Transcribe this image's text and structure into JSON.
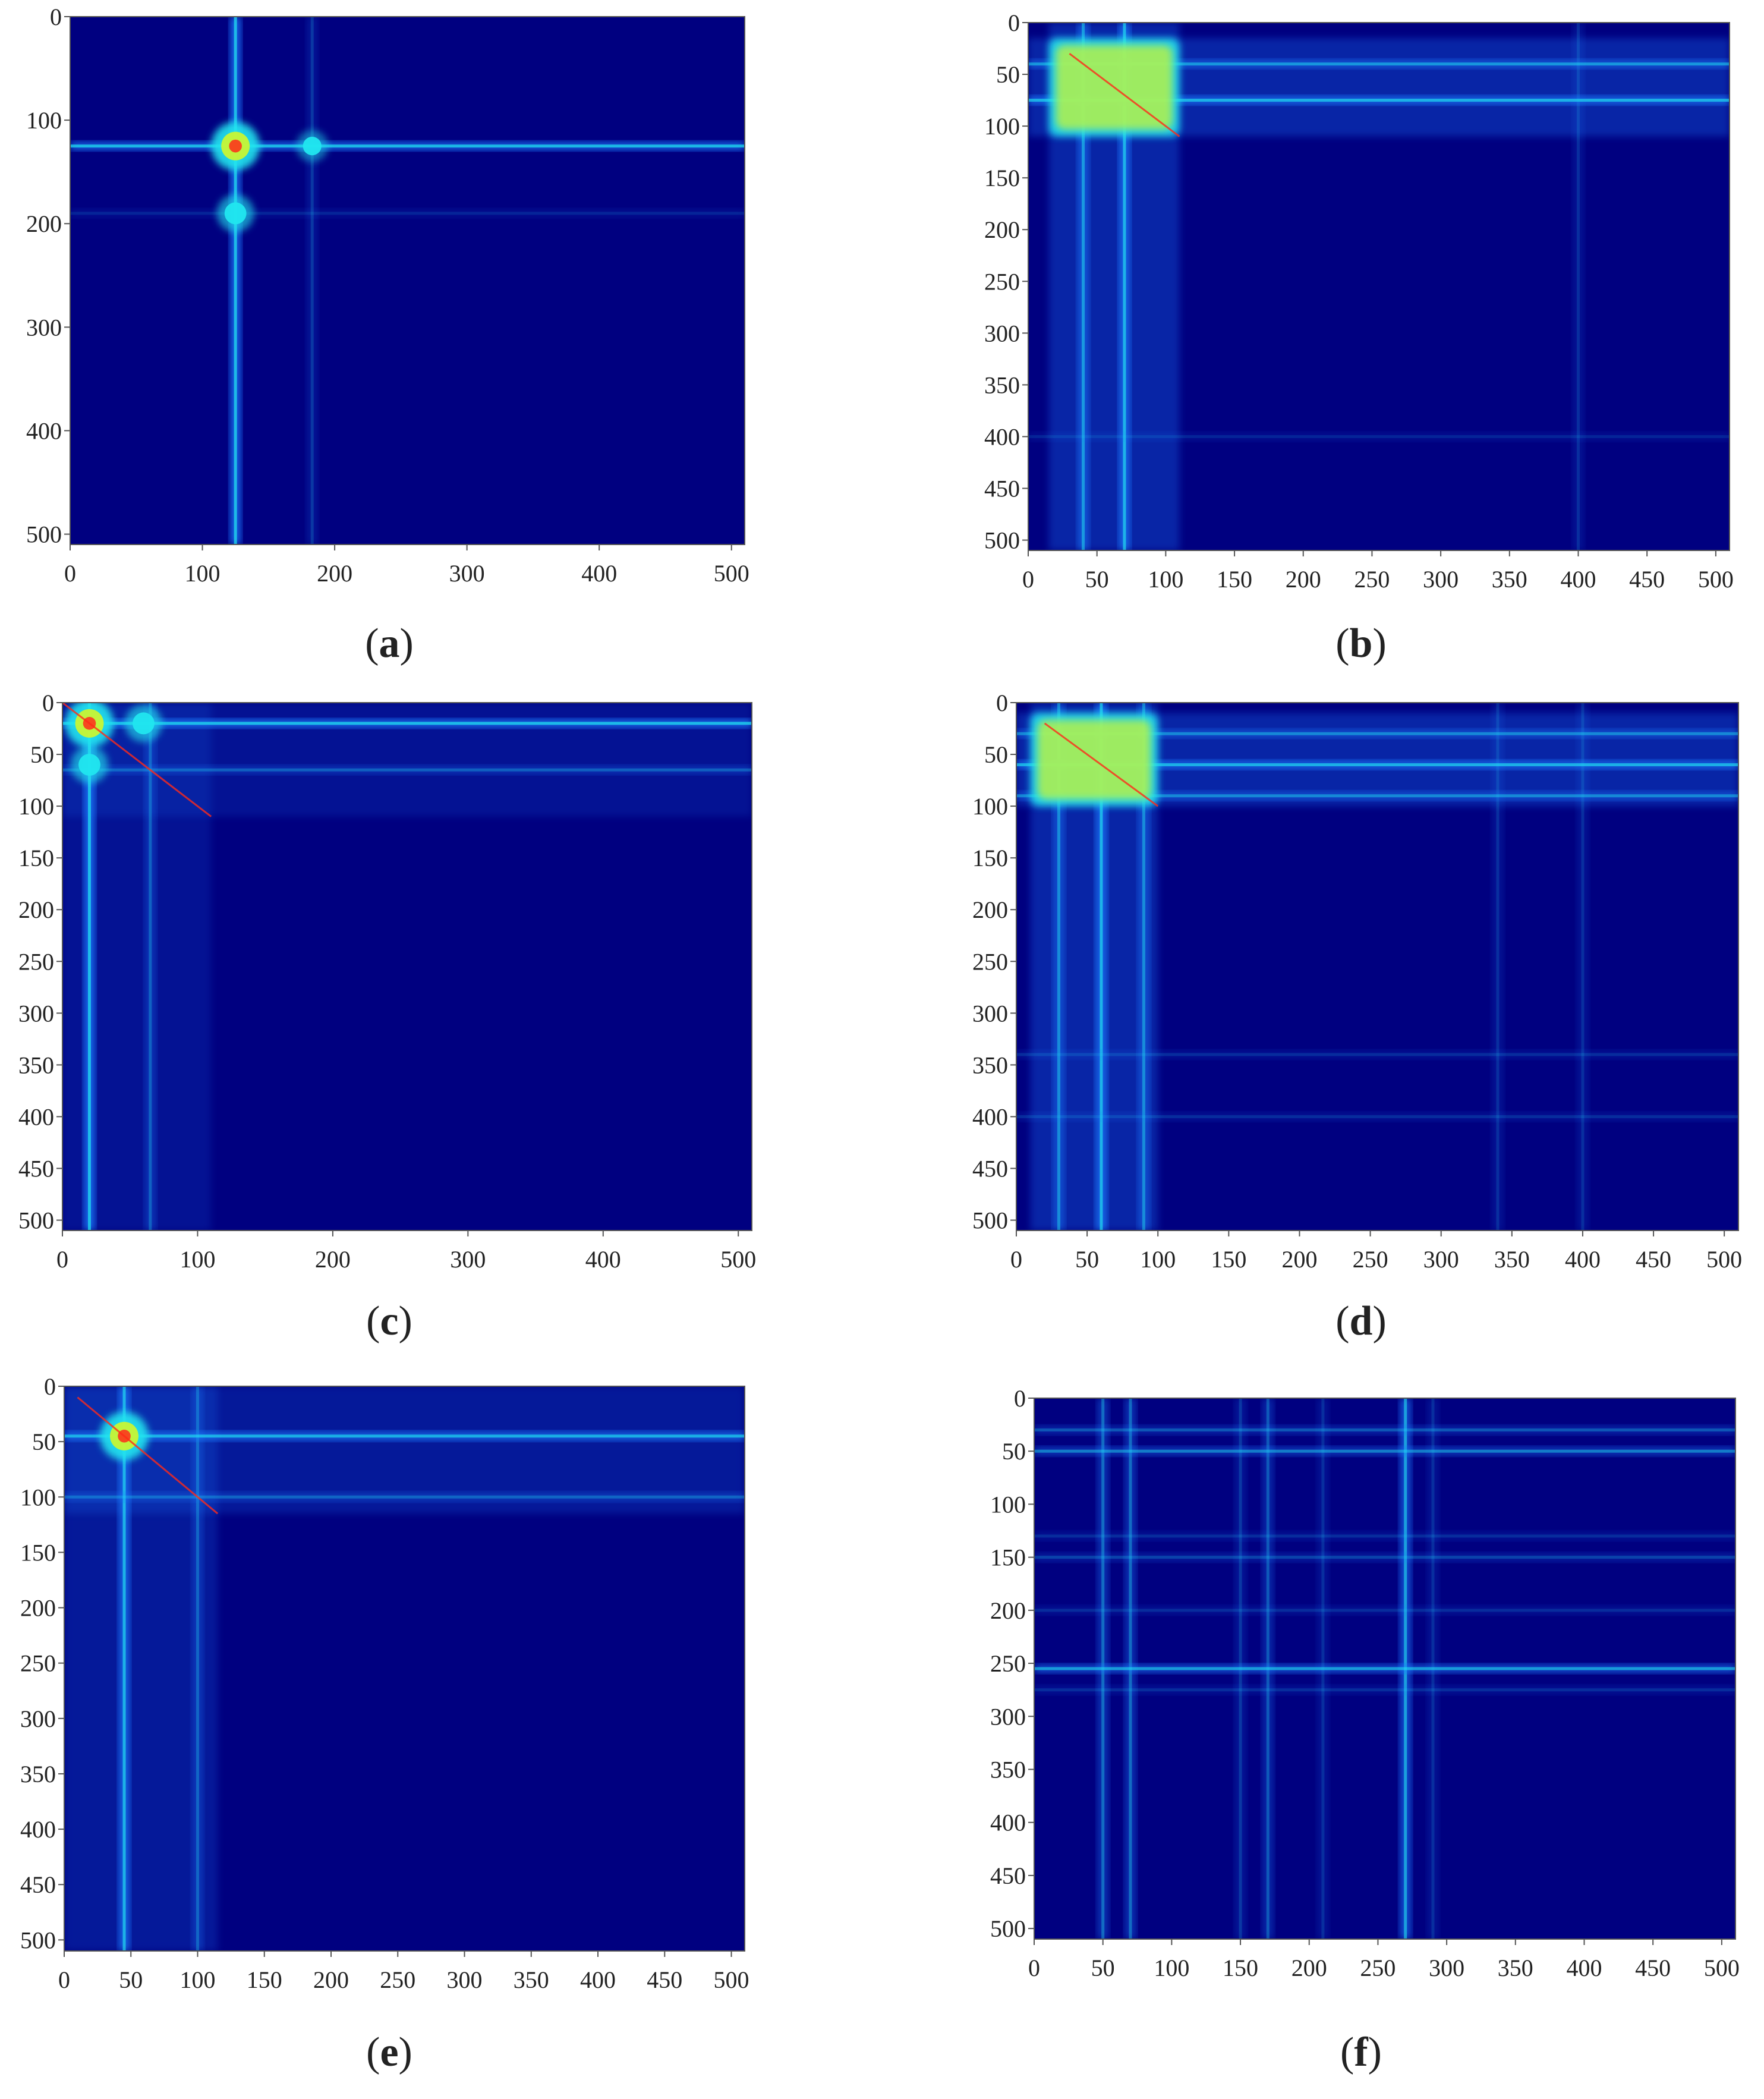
{
  "figure": {
    "panels": [
      {
        "id": "a",
        "label": "a"
      },
      {
        "id": "b",
        "label": "b"
      },
      {
        "id": "c",
        "label": "c"
      },
      {
        "id": "d",
        "label": "d"
      },
      {
        "id": "e",
        "label": "e"
      },
      {
        "id": "f",
        "label": "f"
      }
    ]
  },
  "colors": {
    "background": "#000080",
    "ridge": "#1e7cff",
    "bright": "#21e6ef",
    "hot": "#c8f534",
    "diagonal": "#ff2a1a",
    "tick_text": "#222222"
  },
  "chart_data": [
    {
      "type": "heatmap",
      "panel": "a",
      "colormap": "jet",
      "x_range": [
        0,
        510
      ],
      "y_range": [
        0,
        510
      ],
      "y_inverted": true,
      "xticks": [
        0,
        100,
        200,
        300,
        400,
        500
      ],
      "yticks": [
        0,
        100,
        200,
        300,
        400,
        500
      ],
      "features": {
        "vertical_bands": [
          {
            "at": 125,
            "intensity": 0.5
          },
          {
            "at": 183,
            "intensity": 0.12
          }
        ],
        "horizontal_bands": [
          {
            "at": 125,
            "intensity": 0.5
          },
          {
            "at": 190,
            "intensity": 0.08
          }
        ],
        "hotspots": [
          {
            "x": 125,
            "y": 125,
            "intensity": 1.0
          },
          {
            "x": 125,
            "y": 190,
            "intensity": 0.6
          },
          {
            "x": 183,
            "y": 125,
            "intensity": 0.4
          }
        ]
      }
    },
    {
      "type": "heatmap",
      "panel": "b",
      "colormap": "jet",
      "x_range": [
        0,
        510
      ],
      "y_range": [
        0,
        510
      ],
      "y_inverted": true,
      "xticks": [
        0,
        50,
        100,
        150,
        200,
        250,
        300,
        350,
        400,
        450,
        500
      ],
      "yticks": [
        0,
        50,
        100,
        150,
        200,
        250,
        300,
        350,
        400,
        450,
        500
      ],
      "features": {
        "block": {
          "start": 15,
          "end": 110,
          "intensity": 0.3
        },
        "vertical_bands": [
          {
            "at": 40,
            "intensity": 0.35
          },
          {
            "at": 70,
            "intensity": 0.45
          },
          {
            "at": 400,
            "intensity": 0.1
          }
        ],
        "horizontal_bands": [
          {
            "at": 40,
            "intensity": 0.35
          },
          {
            "at": 75,
            "intensity": 0.45
          },
          {
            "at": 400,
            "intensity": 0.08
          }
        ],
        "hot_block": {
          "start": 15,
          "end": 110
        },
        "diagonal": [
          30,
          110
        ]
      }
    },
    {
      "type": "heatmap",
      "panel": "c",
      "colormap": "jet",
      "x_range": [
        0,
        510
      ],
      "y_range": [
        0,
        510
      ],
      "y_inverted": true,
      "xticks": [
        0,
        100,
        200,
        300,
        400,
        500
      ],
      "yticks": [
        0,
        50,
        100,
        150,
        200,
        250,
        300,
        350,
        400,
        450,
        500
      ],
      "features": {
        "block": {
          "start": 0,
          "end": 110,
          "intensity": 0.15
        },
        "vertical_bands": [
          {
            "at": 20,
            "intensity": 0.5
          },
          {
            "at": 65,
            "intensity": 0.2
          }
        ],
        "horizontal_bands": [
          {
            "at": 20,
            "intensity": 0.5
          },
          {
            "at": 65,
            "intensity": 0.2
          }
        ],
        "hotspots": [
          {
            "x": 20,
            "y": 20,
            "intensity": 1.0
          },
          {
            "x": 20,
            "y": 60,
            "intensity": 0.6
          },
          {
            "x": 60,
            "y": 20,
            "intensity": 0.6
          }
        ],
        "diagonal": [
          0,
          110
        ]
      }
    },
    {
      "type": "heatmap",
      "panel": "d",
      "colormap": "jet",
      "x_range": [
        0,
        510
      ],
      "y_range": [
        0,
        510
      ],
      "y_inverted": true,
      "xticks": [
        0,
        50,
        100,
        150,
        200,
        250,
        300,
        350,
        400,
        450,
        500
      ],
      "yticks": [
        0,
        50,
        100,
        150,
        200,
        250,
        300,
        350,
        400,
        450,
        500
      ],
      "features": {
        "block": {
          "start": 10,
          "end": 100,
          "intensity": 0.3
        },
        "vertical_bands": [
          {
            "at": 30,
            "intensity": 0.3
          },
          {
            "at": 60,
            "intensity": 0.45
          },
          {
            "at": 90,
            "intensity": 0.3
          },
          {
            "at": 340,
            "intensity": 0.1
          },
          {
            "at": 400,
            "intensity": 0.1
          }
        ],
        "horizontal_bands": [
          {
            "at": 30,
            "intensity": 0.3
          },
          {
            "at": 60,
            "intensity": 0.45
          },
          {
            "at": 90,
            "intensity": 0.3
          },
          {
            "at": 340,
            "intensity": 0.1
          },
          {
            "at": 400,
            "intensity": 0.1
          }
        ],
        "hot_block": {
          "start": 10,
          "end": 100
        },
        "diagonal": [
          20,
          100
        ]
      }
    },
    {
      "type": "heatmap",
      "panel": "e",
      "colormap": "jet",
      "x_range": [
        0,
        510
      ],
      "y_range": [
        0,
        510
      ],
      "y_inverted": true,
      "xticks": [
        0,
        50,
        100,
        150,
        200,
        250,
        300,
        350,
        400,
        450,
        500
      ],
      "yticks": [
        0,
        50,
        100,
        150,
        200,
        250,
        300,
        350,
        400,
        450,
        500
      ],
      "features": {
        "block": {
          "start": 0,
          "end": 115,
          "intensity": 0.2
        },
        "vertical_bands": [
          {
            "at": 45,
            "intensity": 0.45
          },
          {
            "at": 100,
            "intensity": 0.2
          }
        ],
        "horizontal_bands": [
          {
            "at": 45,
            "intensity": 0.45
          },
          {
            "at": 100,
            "intensity": 0.2
          }
        ],
        "hotspots": [
          {
            "x": 45,
            "y": 45,
            "intensity": 1.0
          }
        ],
        "diagonal": [
          10,
          115
        ]
      }
    },
    {
      "type": "heatmap",
      "panel": "f",
      "colormap": "jet",
      "x_range": [
        0,
        510
      ],
      "y_range": [
        0,
        510
      ],
      "y_inverted": true,
      "xticks": [
        0,
        50,
        100,
        150,
        200,
        250,
        300,
        350,
        400,
        450,
        500
      ],
      "yticks": [
        0,
        50,
        100,
        150,
        200,
        250,
        300,
        350,
        400,
        450,
        500
      ],
      "features": {
        "vertical_bands": [
          {
            "at": 50,
            "intensity": 0.25
          },
          {
            "at": 70,
            "intensity": 0.25
          },
          {
            "at": 150,
            "intensity": 0.12
          },
          {
            "at": 170,
            "intensity": 0.2
          },
          {
            "at": 210,
            "intensity": 0.1
          },
          {
            "at": 270,
            "intensity": 0.4
          },
          {
            "at": 290,
            "intensity": 0.1
          }
        ],
        "horizontal_bands": [
          {
            "at": 30,
            "intensity": 0.2
          },
          {
            "at": 50,
            "intensity": 0.3
          },
          {
            "at": 130,
            "intensity": 0.1
          },
          {
            "at": 150,
            "intensity": 0.15
          },
          {
            "at": 200,
            "intensity": 0.1
          },
          {
            "at": 255,
            "intensity": 0.4
          },
          {
            "at": 275,
            "intensity": 0.1
          }
        ],
        "hotspots": []
      }
    }
  ]
}
